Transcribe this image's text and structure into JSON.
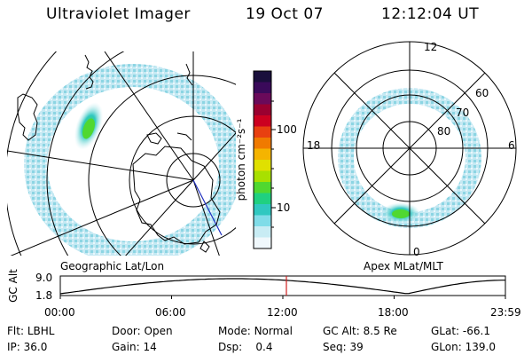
{
  "header": {
    "instrument": "Ultraviolet Imager",
    "date": "19 Oct 07",
    "time": "12:12:04 UT"
  },
  "left_panel": {
    "label": "Geographic Lat/Lon"
  },
  "right_panel": {
    "label": "Apex MLat/MLT",
    "mlt_labels": {
      "top": "12",
      "left": "18",
      "right": "6",
      "bottom": "0"
    },
    "mlat_labels": [
      "60",
      "70",
      "80"
    ]
  },
  "colorbar": {
    "unit_label": "photon cm⁻²s⁻¹",
    "ticks": [
      "100",
      "10"
    ],
    "colors": [
      "#1a0f3c",
      "#3a0a5a",
      "#6a0a5a",
      "#9a0030",
      "#cc0020",
      "#e84010",
      "#f07a00",
      "#f5b400",
      "#e0e000",
      "#a8e000",
      "#50d830",
      "#20d080",
      "#30c8c0",
      "#80dce8",
      "#c8ecf4",
      "#f0f8fc"
    ]
  },
  "altitude_strip": {
    "axis_label": "GC Alt",
    "y_ticks": [
      "9.0",
      "1.8"
    ],
    "x_ticks": [
      "00:00",
      "06:00",
      "12:00",
      "18:00",
      "23:59"
    ],
    "current_fraction": 0.508
  },
  "info": {
    "row1": [
      {
        "label": "Flt:",
        "value": "LBHL"
      },
      {
        "label": "Door:",
        "value": "Open"
      },
      {
        "label": "Mode:",
        "value": "Normal"
      },
      {
        "label": "GC Alt:",
        "value": "8.5 Re"
      },
      {
        "label": "GLat:",
        "value": "-66.1"
      }
    ],
    "row2": [
      {
        "label": "IP:",
        "value": "36.0"
      },
      {
        "label": "Gain:",
        "value": "14"
      },
      {
        "label": "Dsp:",
        "value": "0.4"
      },
      {
        "label": "Seq:",
        "value": "39"
      },
      {
        "label": "GLon:",
        "value": "139.0"
      }
    ]
  }
}
